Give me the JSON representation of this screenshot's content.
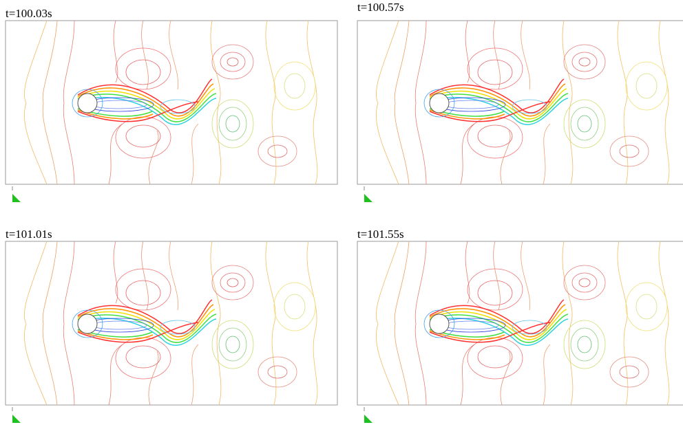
{
  "panels": [
    {
      "label": "t=100.03s"
    },
    {
      "label": "t=100.57s"
    },
    {
      "label": "t=101.01s"
    },
    {
      "label": "t=101.55s"
    }
  ]
}
